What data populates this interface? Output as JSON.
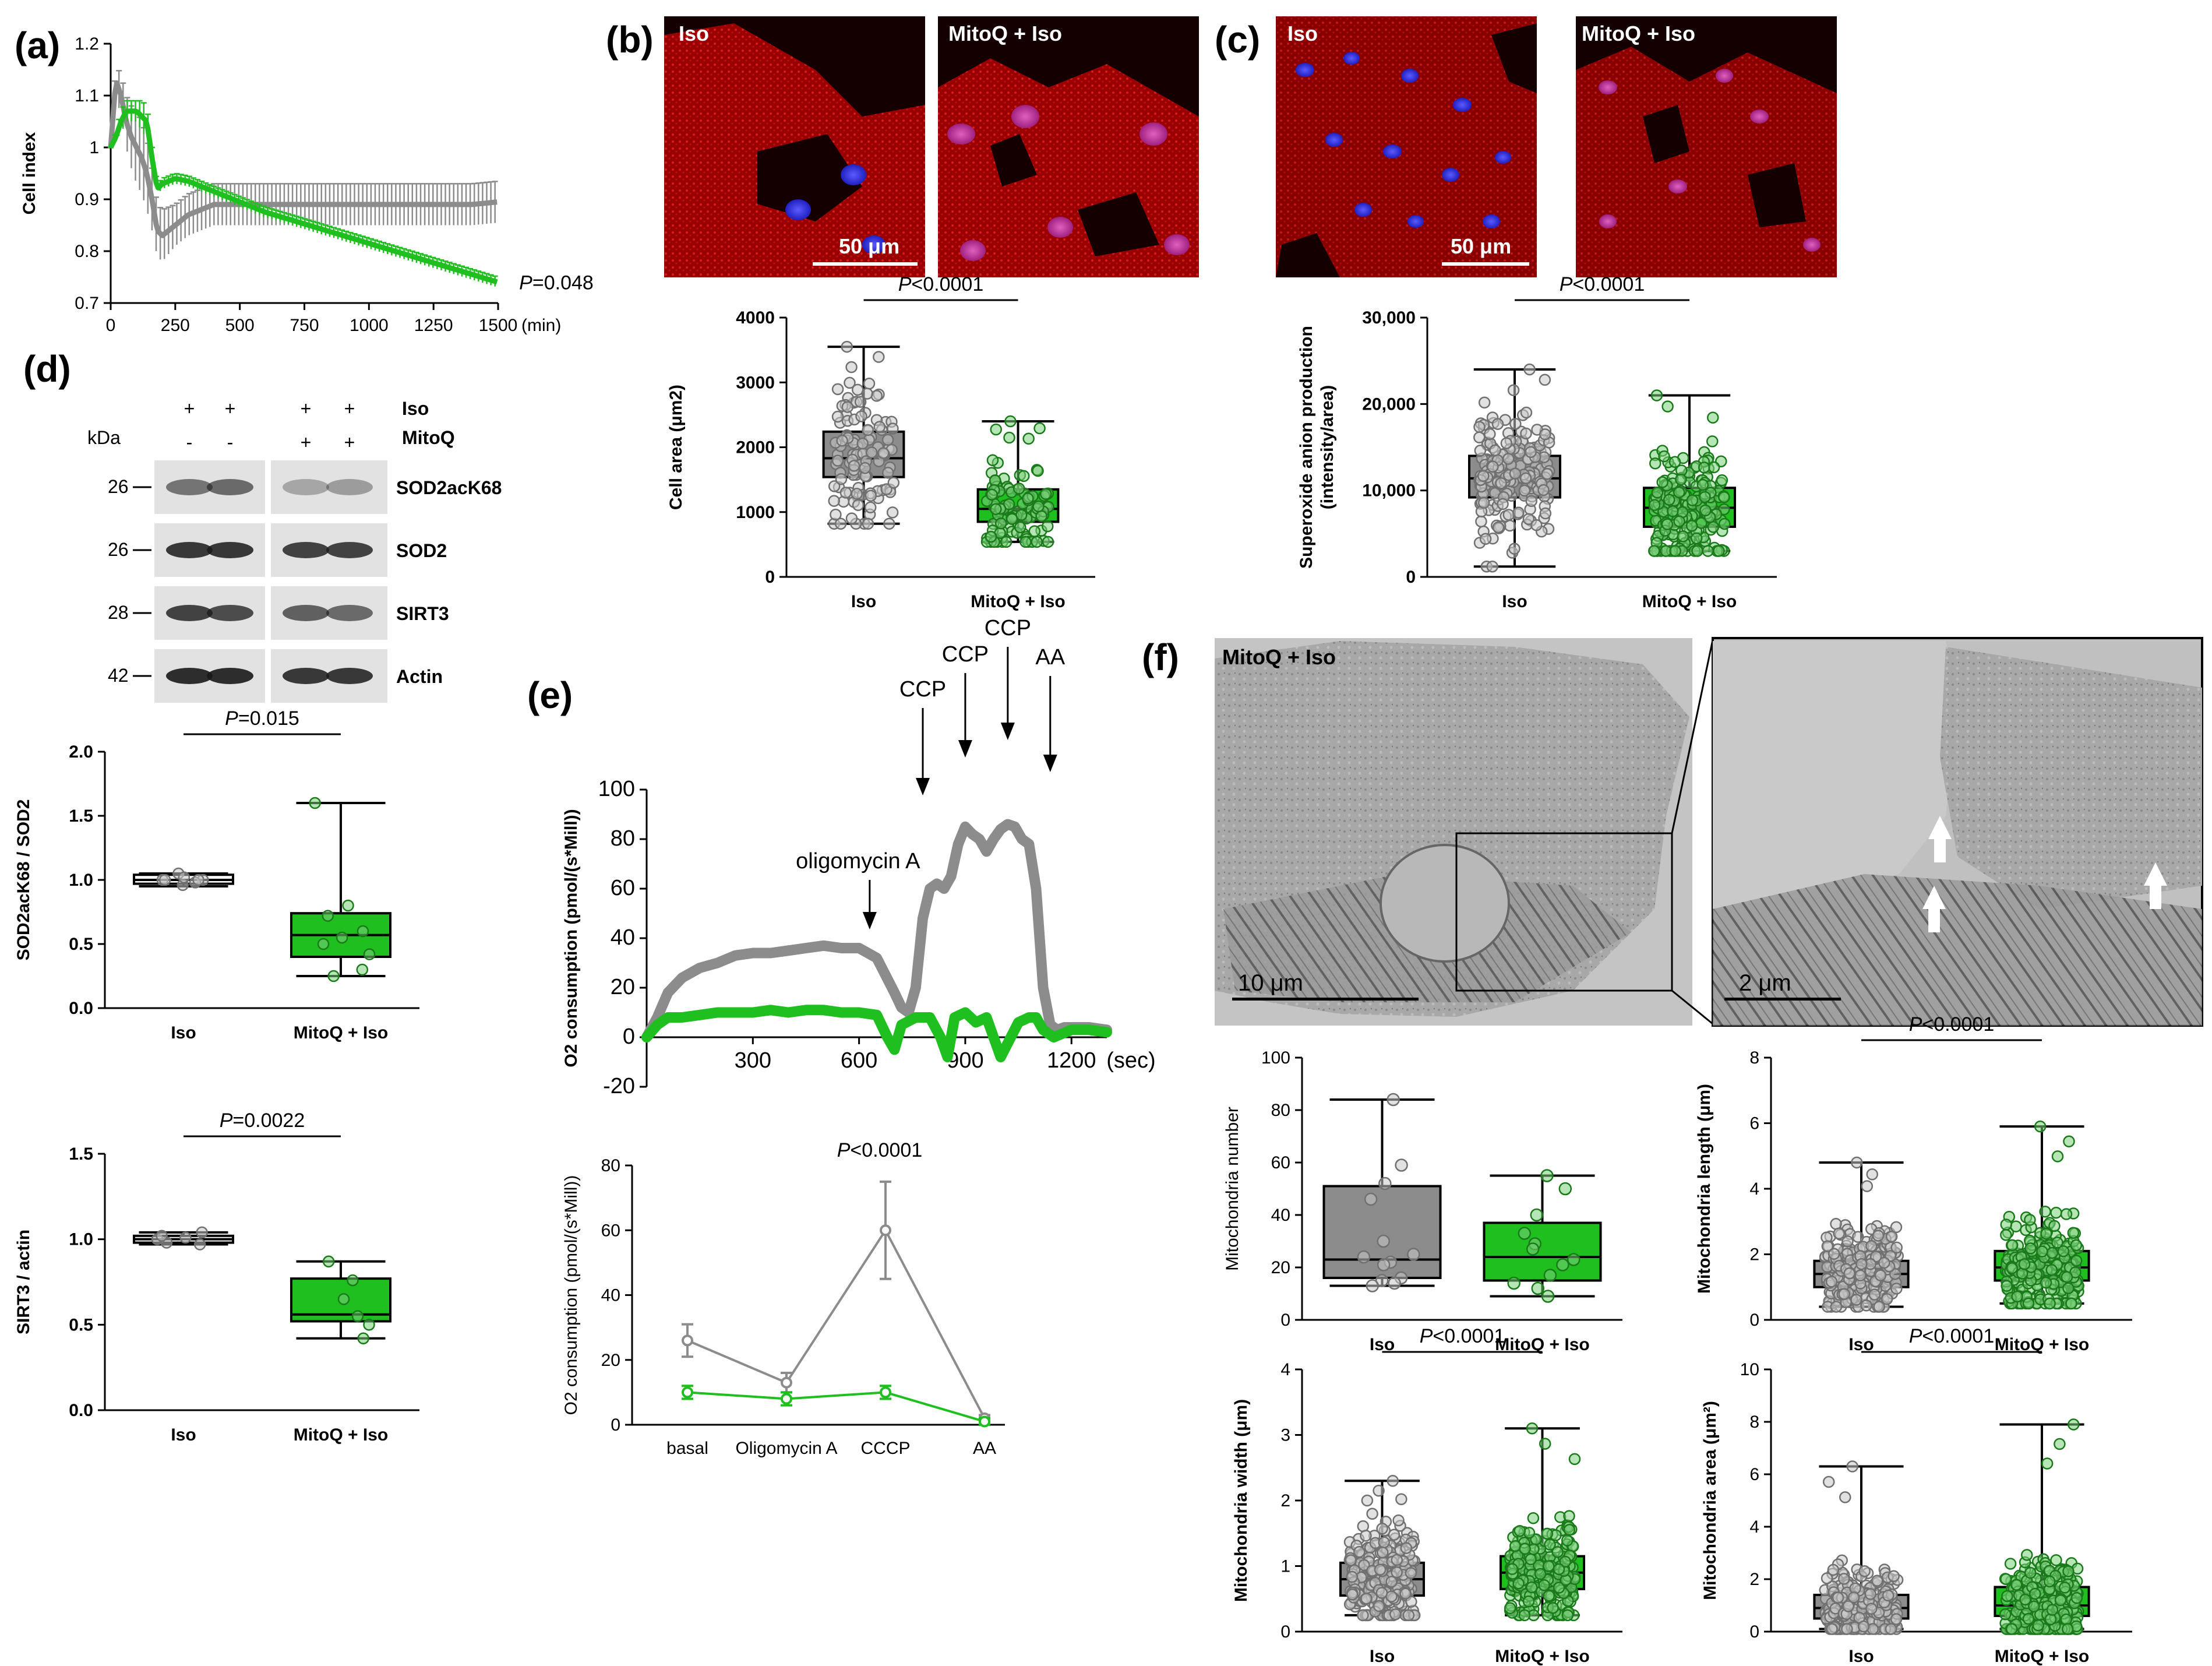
{
  "colors": {
    "iso": "#8c8c8c",
    "mitoq": "#1fbf1f",
    "mitoq_light": "#40d040",
    "micro_bg": "#1a0000"
  },
  "panels": {
    "a": {
      "letter": "(a)"
    },
    "b": {
      "letter": "(b)",
      "img_left": "Iso",
      "img_right": "MitoQ + Iso",
      "scalebar": "50 μm"
    },
    "c": {
      "letter": "(c)",
      "img_left": "Iso",
      "img_right": "MitoQ + Iso",
      "scalebar": "50 μm"
    },
    "d": {
      "letter": "(d)",
      "row_iso": "Iso",
      "row_mitoq": "MitoQ",
      "kda": "kDa",
      "iso_signs": [
        "+",
        "+",
        "+",
        "+"
      ],
      "mitoq_signs": [
        "-",
        "-",
        "+",
        "+"
      ],
      "blots": [
        {
          "kda": "26",
          "name": "SOD2acK68"
        },
        {
          "kda": "26",
          "name": "SOD2"
        },
        {
          "kda": "28",
          "name": "SIRT3"
        },
        {
          "kda": "42",
          "name": "Actin"
        }
      ]
    },
    "e": {
      "letter": "(e)"
    },
    "f": {
      "letter": "(f)",
      "img_left": "MitoQ +  Iso",
      "scalebar_left": "10  μm",
      "scalebar_right": "2  μm"
    }
  },
  "chart_data": [
    {
      "id": "a",
      "type": "line",
      "ylabel": "Cell index",
      "xlabel": "(min)",
      "xlim": [
        0,
        1500
      ],
      "ylim": [
        0.7,
        1.2
      ],
      "xticks": [
        0,
        250,
        500,
        750,
        1000,
        1250,
        1500
      ],
      "yticks": [
        0.7,
        0.8,
        0.9,
        1.0,
        1.1,
        1.2
      ],
      "pvalue": "P=0.048",
      "series": [
        {
          "key": "iso",
          "x": [
            0,
            20,
            40,
            60,
            80,
            100,
            120,
            140,
            160,
            180,
            200,
            250,
            300,
            350,
            400,
            450,
            500,
            600,
            700,
            800,
            900,
            1000,
            1100,
            1200,
            1300,
            1400,
            1500
          ],
          "y": [
            1.0,
            1.13,
            1.1,
            1.05,
            1.02,
            1.0,
            0.98,
            0.95,
            0.9,
            0.84,
            0.83,
            0.85,
            0.87,
            0.88,
            0.89,
            0.89,
            0.89,
            0.89,
            0.89,
            0.89,
            0.89,
            0.89,
            0.89,
            0.89,
            0.89,
            0.89,
            0.895
          ],
          "err": [
            0.0,
            0.03,
            0.04,
            0.05,
            0.06,
            0.07,
            0.07,
            0.07,
            0.06,
            0.05,
            0.05,
            0.04,
            0.04,
            0.04,
            0.04,
            0.04,
            0.04,
            0.04,
            0.04,
            0.04,
            0.04,
            0.04,
            0.04,
            0.04,
            0.04,
            0.04,
            0.04
          ]
        },
        {
          "key": "mitoq",
          "x": [
            0,
            20,
            40,
            60,
            80,
            100,
            120,
            140,
            160,
            180,
            200,
            250,
            300,
            350,
            400,
            500,
            600,
            700,
            800,
            900,
            1000,
            1100,
            1200,
            1300,
            1400,
            1500
          ],
          "y": [
            1.0,
            1.02,
            1.05,
            1.07,
            1.07,
            1.07,
            1.06,
            1.05,
            0.98,
            0.92,
            0.93,
            0.94,
            0.935,
            0.925,
            0.915,
            0.895,
            0.875,
            0.86,
            0.845,
            0.83,
            0.815,
            0.8,
            0.785,
            0.77,
            0.755,
            0.74
          ],
          "err": [
            0.0,
            0.01,
            0.02,
            0.02,
            0.02,
            0.02,
            0.03,
            0.03,
            0.02,
            0.01,
            0.01,
            0.01,
            0.01,
            0.01,
            0.01,
            0.01,
            0.01,
            0.01,
            0.01,
            0.01,
            0.01,
            0.01,
            0.01,
            0.01,
            0.01,
            0.01
          ]
        }
      ]
    },
    {
      "id": "b",
      "type": "box",
      "ylabel": "Cell area (μm2)",
      "ylim": [
        0,
        4000
      ],
      "yticks": [
        0,
        1000,
        2000,
        3000,
        4000
      ],
      "categories": [
        "Iso",
        "MitoQ + Iso"
      ],
      "pvalue": "P<0.0001",
      "boxes": [
        {
          "key": "iso",
          "min": 820,
          "q1": 1540,
          "median": 1830,
          "q3": 2240,
          "max": 3550,
          "n": 110
        },
        {
          "key": "mitoq",
          "min": 540,
          "q1": 850,
          "median": 1050,
          "q3": 1350,
          "max": 2400,
          "n": 110
        }
      ]
    },
    {
      "id": "c",
      "type": "box",
      "ylabel": "Superoxide anion production",
      "ylabel2": "(intensity/area)",
      "ylim": [
        0,
        30000
      ],
      "yticks": [
        0,
        10000,
        20000,
        30000
      ],
      "yticklabels": [
        "0",
        "10,000",
        "20,000",
        "30,000"
      ],
      "categories": [
        "Iso",
        "MitoQ + Iso"
      ],
      "pvalue": "P<0.0001",
      "boxes": [
        {
          "key": "iso",
          "min": 1200,
          "q1": 9200,
          "median": 11400,
          "q3": 14000,
          "max": 24000,
          "n": 200
        },
        {
          "key": "mitoq",
          "min": 3000,
          "q1": 5800,
          "median": 8000,
          "q3": 10300,
          "max": 21000,
          "n": 200
        }
      ]
    },
    {
      "id": "d1",
      "type": "box",
      "ylabel": "SOD2acK68 / SOD2",
      "ylim": [
        0,
        2.0
      ],
      "yticks": [
        0.0,
        0.5,
        1.0,
        1.5,
        2.0
      ],
      "yticklabels": [
        "0.0",
        "0.5",
        "1.0",
        "1.5",
        "2.0"
      ],
      "categories": [
        "Iso",
        "MitoQ + Iso"
      ],
      "pvalue": "P=0.015",
      "boxes": [
        {
          "key": "iso",
          "min": 0.95,
          "q1": 0.97,
          "median": 1.0,
          "q3": 1.04,
          "max": 1.05,
          "points": [
            1.05,
            1.0,
            0.98,
            0.96,
            1.02,
            1.0,
            1.0,
            1.0
          ]
        },
        {
          "key": "mitoq",
          "min": 0.25,
          "q1": 0.4,
          "median": 0.57,
          "q3": 0.74,
          "max": 1.6,
          "points": [
            1.6,
            0.8,
            0.72,
            0.6,
            0.55,
            0.5,
            0.42,
            0.3,
            0.25
          ]
        }
      ]
    },
    {
      "id": "d2",
      "type": "box",
      "ylabel": "SIRT3 / actin",
      "ylim": [
        0,
        1.5
      ],
      "yticks": [
        0.0,
        0.5,
        1.0,
        1.5
      ],
      "yticklabels": [
        "0.0",
        "0.5",
        "1.0",
        "1.5"
      ],
      "categories": [
        "Iso",
        "MitoQ + Iso"
      ],
      "pvalue": "P=0.0022",
      "boxes": [
        {
          "key": "iso",
          "min": 0.97,
          "q1": 0.98,
          "median": 1.0,
          "q3": 1.02,
          "max": 1.04,
          "points": [
            1.04,
            1.0,
            0.98,
            0.97,
            1.01,
            1.02
          ]
        },
        {
          "key": "mitoq",
          "min": 0.42,
          "q1": 0.52,
          "median": 0.56,
          "q3": 0.77,
          "max": 0.87,
          "points": [
            0.87,
            0.76,
            0.65,
            0.55,
            0.5,
            0.42
          ]
        }
      ]
    },
    {
      "id": "e1",
      "type": "line",
      "ylabel": "O2 consumption (pmol/(s*Mill))",
      "xlabel": "(sec)",
      "xlim": [
        0,
        1300
      ],
      "ylim": [
        -20,
        100
      ],
      "xticks": [
        300,
        600,
        900,
        1200
      ],
      "yticks": [
        -20,
        0,
        20,
        40,
        60,
        80,
        100
      ],
      "annotations": [
        {
          "label": "oligomycin A",
          "x": 630
        },
        {
          "label": "CCP",
          "x": 780
        },
        {
          "label": "CCP",
          "x": 900
        },
        {
          "label": "CCP",
          "x": 1020
        },
        {
          "label": "AA",
          "x": 1140
        }
      ],
      "series": [
        {
          "key": "iso",
          "x": [
            0,
            30,
            60,
            100,
            150,
            200,
            250,
            300,
            350,
            400,
            450,
            500,
            550,
            600,
            650,
            700,
            720,
            740,
            760,
            780,
            800,
            820,
            840,
            860,
            880,
            900,
            920,
            940,
            960,
            980,
            1000,
            1020,
            1040,
            1060,
            1080,
            1100,
            1120,
            1140,
            1160,
            1180,
            1200,
            1250,
            1300
          ],
          "y": [
            0,
            8,
            18,
            24,
            28,
            30,
            33,
            34,
            34,
            35,
            36,
            37,
            36,
            36,
            32,
            18,
            12,
            10,
            20,
            48,
            60,
            62,
            60,
            65,
            78,
            85,
            82,
            80,
            75,
            80,
            84,
            86,
            85,
            80,
            78,
            60,
            20,
            5,
            3,
            4,
            4,
            4,
            3
          ]
        },
        {
          "key": "mitoq",
          "x": [
            0,
            30,
            60,
            100,
            150,
            200,
            250,
            300,
            350,
            400,
            450,
            500,
            550,
            600,
            650,
            680,
            700,
            720,
            760,
            800,
            830,
            850,
            870,
            900,
            930,
            960,
            1000,
            1050,
            1080,
            1100,
            1120,
            1150,
            1200,
            1250,
            1300
          ],
          "y": [
            0,
            5,
            8,
            8,
            9,
            10,
            10,
            10,
            11,
            10,
            11,
            11,
            10,
            10,
            9,
            0,
            -5,
            5,
            8,
            8,
            0,
            -8,
            8,
            10,
            6,
            8,
            -8,
            6,
            8,
            8,
            3,
            0,
            3,
            3,
            2
          ]
        }
      ]
    },
    {
      "id": "e2",
      "type": "line",
      "ylabel": "O2 consumption (pmol/(s*Mill))",
      "categories": [
        "basal",
        "Oligomycin A",
        "CCCP",
        "AA"
      ],
      "ylim": [
        0,
        80
      ],
      "yticks": [
        0,
        20,
        40,
        60,
        80
      ],
      "pvalue": "P<0.0001",
      "series": [
        {
          "key": "iso",
          "values": [
            26,
            13,
            60,
            2
          ],
          "err": [
            5,
            3,
            15,
            1
          ]
        },
        {
          "key": "mitoq",
          "values": [
            10,
            8,
            10,
            1
          ],
          "err": [
            2,
            2,
            2,
            1
          ]
        }
      ]
    },
    {
      "id": "f1",
      "type": "box",
      "ylabel": "Mitochondria number",
      "ylim": [
        0,
        100
      ],
      "yticks": [
        0,
        20,
        40,
        60,
        80,
        100
      ],
      "categories": [
        "Iso",
        "MitoQ + Iso"
      ],
      "boxes": [
        {
          "key": "iso",
          "min": 13,
          "q1": 16,
          "median": 23,
          "q3": 51,
          "max": 84,
          "points": [
            84,
            59,
            52,
            46,
            30,
            25,
            24,
            22,
            21,
            16,
            15,
            14,
            13
          ]
        },
        {
          "key": "mitoq",
          "min": 9,
          "q1": 15,
          "median": 24,
          "q3": 37,
          "max": 55,
          "points": [
            55,
            50,
            40,
            33,
            29,
            27,
            23,
            21,
            17,
            14,
            12,
            9
          ]
        }
      ]
    },
    {
      "id": "f2",
      "type": "box",
      "ylabel": "Mitochondria length (μm)",
      "ylim": [
        0,
        8
      ],
      "yticks": [
        0,
        2,
        4,
        6,
        8
      ],
      "categories": [
        "Iso",
        "MitoQ + Iso"
      ],
      "pvalue": "P<0.0001",
      "boxes": [
        {
          "key": "iso",
          "min": 0.4,
          "q1": 1.0,
          "median": 1.4,
          "q3": 1.8,
          "max": 4.8,
          "n": 260
        },
        {
          "key": "mitoq",
          "min": 0.5,
          "q1": 1.2,
          "median": 1.6,
          "q3": 2.1,
          "max": 5.9,
          "n": 260
        }
      ]
    },
    {
      "id": "f3",
      "type": "box",
      "ylabel": "Mitochondria width (μm)",
      "ylim": [
        0,
        4
      ],
      "yticks": [
        0,
        1,
        2,
        3,
        4
      ],
      "categories": [
        "Iso",
        "MitoQ + Iso"
      ],
      "pvalue": "P<0.0001",
      "boxes": [
        {
          "key": "iso",
          "min": 0.25,
          "q1": 0.55,
          "median": 0.8,
          "q3": 1.05,
          "max": 2.3,
          "n": 260
        },
        {
          "key": "mitoq",
          "min": 0.25,
          "q1": 0.65,
          "median": 0.9,
          "q3": 1.15,
          "max": 3.1,
          "n": 260
        }
      ]
    },
    {
      "id": "f4",
      "type": "box",
      "ylabel": "Mitochondria area (μm²)",
      "ylim": [
        0,
        10
      ],
      "yticks": [
        0,
        2,
        4,
        6,
        8,
        10
      ],
      "categories": [
        "Iso",
        "MitoQ + Iso"
      ],
      "pvalue": "P<0.0001",
      "boxes": [
        {
          "key": "iso",
          "min": 0.1,
          "q1": 0.5,
          "median": 0.9,
          "q3": 1.4,
          "max": 6.3,
          "n": 260
        },
        {
          "key": "mitoq",
          "min": 0.1,
          "q1": 0.6,
          "median": 1.0,
          "q3": 1.7,
          "max": 7.9,
          "n": 260
        }
      ]
    }
  ]
}
